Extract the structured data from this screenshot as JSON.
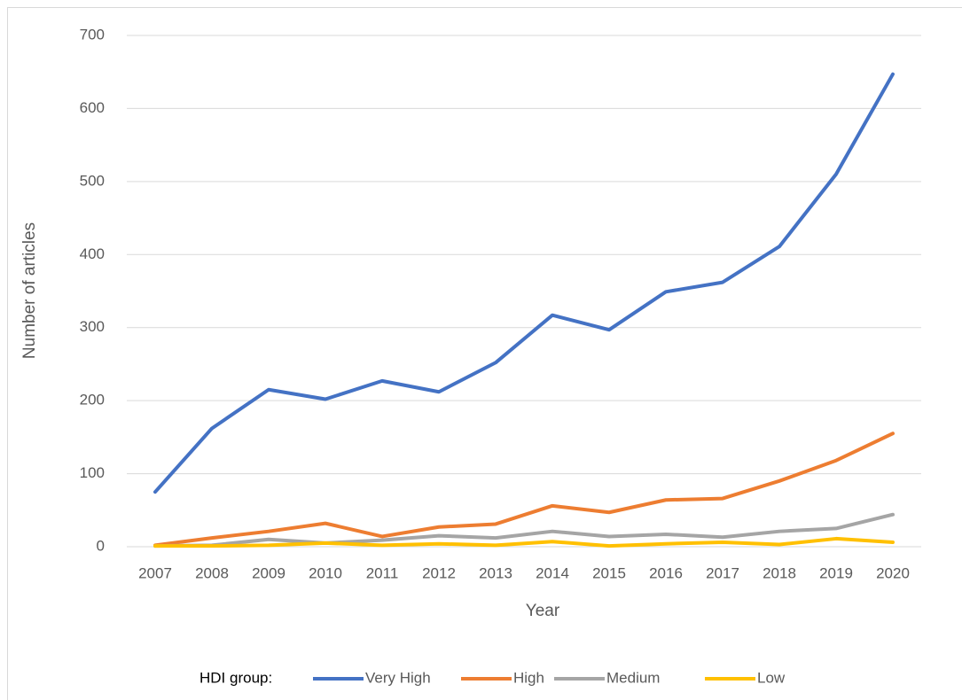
{
  "chart_data": {
    "type": "line",
    "x_label": "Year",
    "y_label": "Number of articles",
    "legend_title": "HDI group:",
    "categories": [
      "2007",
      "2008",
      "2009",
      "2010",
      "2011",
      "2012",
      "2013",
      "2014",
      "2015",
      "2016",
      "2017",
      "2018",
      "2019",
      "2020"
    ],
    "series": [
      {
        "name": "Very High",
        "color": "#4472c4",
        "values": [
          75,
          162,
          215,
          202,
          227,
          212,
          252,
          317,
          297,
          349,
          362,
          411,
          510,
          647
        ]
      },
      {
        "name": "High",
        "color": "#ed7d31",
        "values": [
          2,
          12,
          21,
          32,
          14,
          27,
          31,
          56,
          47,
          64,
          66,
          90,
          118,
          155
        ]
      },
      {
        "name": "Medium",
        "color": "#a5a5a5",
        "values": [
          1,
          2,
          10,
          5,
          9,
          15,
          12,
          21,
          14,
          17,
          13,
          21,
          25,
          44
        ]
      },
      {
        "name": "Low",
        "color": "#ffc000",
        "values": [
          1,
          1,
          2,
          5,
          2,
          4,
          2,
          7,
          1,
          4,
          6,
          3,
          11,
          6
        ]
      }
    ],
    "ylim": [
      0,
      700
    ],
    "yticks": [
      0,
      100,
      200,
      300,
      400,
      500,
      600,
      700
    ],
    "grid": true,
    "legend": "bottom"
  }
}
